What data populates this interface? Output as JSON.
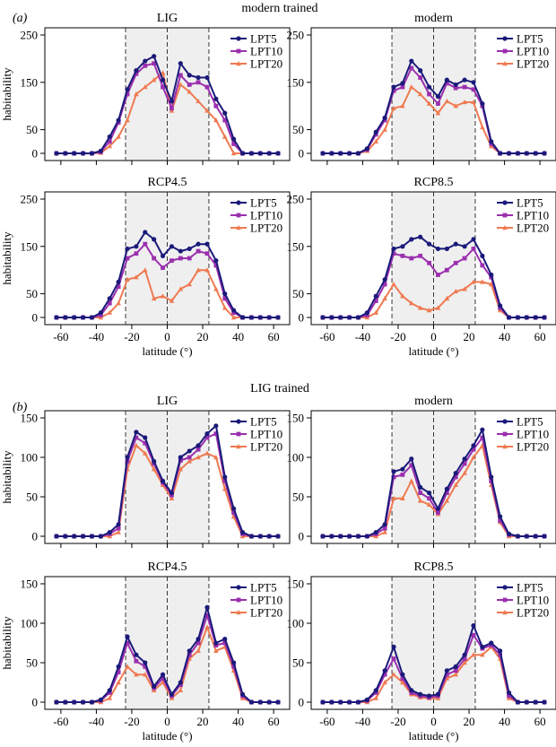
{
  "figure": {
    "section_a": {
      "label": "(a)",
      "title": "modern trained"
    },
    "section_b": {
      "label": "(b)",
      "title": "LIG trained"
    },
    "x_axis_label": "latitude (°)",
    "y_axis_label": "habitability",
    "x_ticks": [
      -60,
      -40,
      -20,
      0,
      20,
      40,
      60
    ],
    "series_names": [
      "LPT5",
      "LPT10",
      "LPT20"
    ],
    "colors": {
      "LPT5": "#1b1a7a",
      "LPT10": "#9b2fae",
      "LPT20": "#ef7a52",
      "shade": "#efefef"
    }
  },
  "chart_data": [
    {
      "type": "line",
      "panel": "a1",
      "title": "LIG",
      "xlabel": "",
      "ylabel": "habitability",
      "xlim": [
        -65,
        65
      ],
      "ylim": [
        0,
        250
      ],
      "yticks": [
        0,
        50,
        150,
        250
      ],
      "shaded_region": [
        -23.5,
        23.5
      ],
      "vlines": [
        -23.5,
        0,
        23.5
      ],
      "legend": "top-right",
      "x": [
        -62.5,
        -57.5,
        -52.5,
        -47.5,
        -42.5,
        -37.5,
        -32.5,
        -27.5,
        -22.5,
        -17.5,
        -12.5,
        -7.5,
        -2.5,
        2.5,
        7.5,
        12.5,
        17.5,
        22.5,
        27.5,
        32.5,
        37.5,
        42.5,
        47.5,
        52.5,
        57.5,
        62.5
      ],
      "series": [
        {
          "name": "LPT5",
          "values": [
            0,
            0,
            0,
            0,
            0,
            5,
            35,
            70,
            135,
            175,
            195,
            205,
            155,
            110,
            190,
            165,
            160,
            160,
            115,
            85,
            30,
            0,
            0,
            0,
            0,
            0
          ]
        },
        {
          "name": "LPT10",
          "values": [
            0,
            0,
            0,
            0,
            0,
            3,
            25,
            65,
            125,
            168,
            185,
            190,
            140,
            95,
            165,
            145,
            150,
            140,
            100,
            70,
            20,
            0,
            0,
            0,
            0,
            0
          ]
        },
        {
          "name": "LPT20",
          "values": [
            0,
            0,
            0,
            0,
            0,
            1,
            15,
            35,
            70,
            125,
            140,
            155,
            170,
            90,
            145,
            130,
            110,
            90,
            70,
            35,
            0,
            0,
            0,
            0,
            0,
            0
          ]
        }
      ]
    },
    {
      "type": "line",
      "panel": "a2",
      "title": "modern",
      "xlabel": "",
      "ylabel": "",
      "xlim": [
        -65,
        65
      ],
      "ylim": [
        0,
        250
      ],
      "yticks": [
        0,
        50,
        150,
        250
      ],
      "shaded_region": [
        -23.5,
        23.5
      ],
      "vlines": [
        -23.5,
        0,
        23.5
      ],
      "legend": "top-right",
      "x": [
        -62.5,
        -57.5,
        -52.5,
        -47.5,
        -42.5,
        -37.5,
        -32.5,
        -27.5,
        -22.5,
        -17.5,
        -12.5,
        -7.5,
        -2.5,
        2.5,
        7.5,
        12.5,
        17.5,
        22.5,
        27.5,
        32.5,
        37.5,
        42.5,
        47.5,
        52.5,
        57.5,
        62.5
      ],
      "series": [
        {
          "name": "LPT5",
          "values": [
            0,
            0,
            0,
            0,
            0,
            10,
            45,
            75,
            140,
            148,
            195,
            175,
            140,
            120,
            155,
            145,
            155,
            150,
            105,
            25,
            0,
            0,
            0,
            0,
            0,
            0
          ]
        },
        {
          "name": "LPT10",
          "values": [
            0,
            0,
            0,
            0,
            0,
            8,
            40,
            70,
            132,
            140,
            180,
            160,
            125,
            105,
            148,
            138,
            140,
            135,
            100,
            20,
            0,
            0,
            0,
            0,
            0,
            0
          ]
        },
        {
          "name": "LPT20",
          "values": [
            0,
            0,
            0,
            0,
            0,
            5,
            25,
            50,
            95,
            100,
            140,
            125,
            105,
            85,
            110,
            100,
            108,
            108,
            55,
            15,
            0,
            0,
            0,
            0,
            0,
            0
          ]
        }
      ]
    },
    {
      "type": "line",
      "panel": "a3",
      "title": "RCP4.5",
      "xlabel": "latitude (°)",
      "ylabel": "habitability",
      "xlim": [
        -65,
        65
      ],
      "ylim": [
        0,
        250
      ],
      "yticks": [
        0,
        50,
        150,
        250
      ],
      "shaded_region": [
        -23.5,
        23.5
      ],
      "vlines": [
        -23.5,
        0,
        23.5
      ],
      "legend": "top-right",
      "x": [
        -62.5,
        -57.5,
        -52.5,
        -47.5,
        -42.5,
        -37.5,
        -32.5,
        -27.5,
        -22.5,
        -17.5,
        -12.5,
        -7.5,
        -2.5,
        2.5,
        7.5,
        12.5,
        17.5,
        22.5,
        27.5,
        32.5,
        37.5,
        42.5,
        47.5,
        52.5,
        57.5,
        62.5
      ],
      "series": [
        {
          "name": "LPT5",
          "values": [
            0,
            0,
            0,
            0,
            0,
            10,
            40,
            75,
            145,
            150,
            180,
            165,
            130,
            150,
            140,
            145,
            155,
            155,
            120,
            50,
            15,
            0,
            0,
            0,
            0,
            0
          ]
        },
        {
          "name": "LPT10",
          "values": [
            0,
            0,
            0,
            0,
            0,
            5,
            30,
            65,
            125,
            135,
            155,
            125,
            105,
            120,
            125,
            125,
            140,
            135,
            110,
            40,
            10,
            0,
            0,
            0,
            0,
            0
          ]
        },
        {
          "name": "LPT20",
          "values": [
            0,
            0,
            0,
            0,
            0,
            0,
            10,
            30,
            80,
            85,
            100,
            40,
            45,
            35,
            60,
            70,
            100,
            100,
            60,
            20,
            0,
            0,
            0,
            0,
            0,
            0
          ]
        }
      ]
    },
    {
      "type": "line",
      "panel": "a4",
      "title": "RCP8.5",
      "xlabel": "latitude (°)",
      "ylabel": "",
      "xlim": [
        -65,
        65
      ],
      "ylim": [
        0,
        250
      ],
      "yticks": [
        0,
        50,
        150,
        250
      ],
      "shaded_region": [
        -23.5,
        23.5
      ],
      "vlines": [
        -23.5,
        0,
        23.5
      ],
      "legend": "top-right",
      "x": [
        -62.5,
        -57.5,
        -52.5,
        -47.5,
        -42.5,
        -37.5,
        -32.5,
        -27.5,
        -22.5,
        -17.5,
        -12.5,
        -7.5,
        -2.5,
        2.5,
        7.5,
        12.5,
        17.5,
        22.5,
        27.5,
        32.5,
        37.5,
        42.5,
        47.5,
        52.5,
        57.5,
        62.5
      ],
      "series": [
        {
          "name": "LPT5",
          "values": [
            0,
            0,
            0,
            0,
            0,
            10,
            45,
            80,
            145,
            150,
            165,
            170,
            155,
            145,
            145,
            155,
            150,
            165,
            130,
            90,
            25,
            0,
            0,
            0,
            0,
            0
          ]
        },
        {
          "name": "LPT10",
          "values": [
            0,
            0,
            0,
            0,
            0,
            5,
            35,
            70,
            135,
            130,
            125,
            130,
            115,
            90,
            100,
            115,
            125,
            145,
            110,
            85,
            20,
            0,
            0,
            0,
            0,
            0
          ]
        },
        {
          "name": "LPT20",
          "values": [
            0,
            0,
            0,
            0,
            0,
            0,
            10,
            40,
            70,
            45,
            30,
            20,
            15,
            20,
            40,
            55,
            60,
            75,
            75,
            70,
            15,
            0,
            0,
            0,
            0,
            0
          ]
        }
      ]
    },
    {
      "type": "line",
      "panel": "b1",
      "title": "LIG",
      "xlabel": "",
      "ylabel": "habitability",
      "xlim": [
        -65,
        65
      ],
      "ylim": [
        0,
        150
      ],
      "yticks": [
        0,
        50,
        100,
        150
      ],
      "shaded_region": [
        -23.5,
        23.5
      ],
      "vlines": [
        -23.5,
        0,
        23.5
      ],
      "legend": "top-right",
      "x": [
        -62.5,
        -57.5,
        -52.5,
        -47.5,
        -42.5,
        -37.5,
        -32.5,
        -27.5,
        -22.5,
        -17.5,
        -12.5,
        -7.5,
        -2.5,
        2.5,
        7.5,
        12.5,
        17.5,
        22.5,
        27.5,
        32.5,
        37.5,
        42.5,
        47.5,
        52.5,
        57.5,
        62.5
      ],
      "series": [
        {
          "name": "LPT5",
          "values": [
            0,
            0,
            0,
            0,
            0,
            0,
            5,
            15,
            100,
            132,
            125,
            95,
            70,
            55,
            100,
            108,
            115,
            130,
            140,
            75,
            35,
            5,
            0,
            0,
            0,
            0
          ]
        },
        {
          "name": "LPT10",
          "values": [
            0,
            0,
            0,
            0,
            0,
            0,
            3,
            10,
            95,
            125,
            118,
            92,
            68,
            52,
            96,
            100,
            110,
            125,
            130,
            70,
            30,
            3,
            0,
            0,
            0,
            0
          ]
        },
        {
          "name": "LPT20",
          "values": [
            0,
            0,
            0,
            0,
            0,
            0,
            0,
            5,
            85,
            115,
            105,
            85,
            65,
            48,
            85,
            95,
            100,
            105,
            100,
            60,
            25,
            0,
            0,
            0,
            0,
            0
          ]
        }
      ]
    },
    {
      "type": "line",
      "panel": "b2",
      "title": "modern",
      "xlabel": "",
      "ylabel": "",
      "xlim": [
        -65,
        65
      ],
      "ylim": [
        0,
        150
      ],
      "yticks": [
        0,
        50,
        100,
        150
      ],
      "shaded_region": [
        -23.5,
        23.5
      ],
      "vlines": [
        -23.5,
        0,
        23.5
      ],
      "legend": "top-right",
      "x": [
        -62.5,
        -57.5,
        -52.5,
        -47.5,
        -42.5,
        -37.5,
        -32.5,
        -27.5,
        -22.5,
        -17.5,
        -12.5,
        -7.5,
        -2.5,
        2.5,
        7.5,
        12.5,
        17.5,
        22.5,
        27.5,
        32.5,
        37.5,
        42.5,
        47.5,
        52.5,
        57.5,
        62.5
      ],
      "series": [
        {
          "name": "LPT5",
          "values": [
            0,
            0,
            0,
            0,
            0,
            0,
            5,
            15,
            82,
            85,
            98,
            62,
            55,
            35,
            60,
            80,
            98,
            115,
            135,
            75,
            25,
            3,
            0,
            0,
            0,
            0
          ]
        },
        {
          "name": "LPT10",
          "values": [
            0,
            0,
            0,
            0,
            0,
            0,
            3,
            10,
            75,
            78,
            90,
            55,
            48,
            30,
            55,
            75,
            92,
            110,
            125,
            70,
            20,
            2,
            0,
            0,
            0,
            0
          ]
        },
        {
          "name": "LPT20",
          "values": [
            0,
            0,
            0,
            0,
            0,
            0,
            0,
            5,
            48,
            48,
            70,
            45,
            40,
            28,
            45,
            65,
            80,
            100,
            115,
            65,
            18,
            0,
            0,
            0,
            0,
            0
          ]
        }
      ]
    },
    {
      "type": "line",
      "panel": "b3",
      "title": "RCP4.5",
      "xlabel": "latitude (°)",
      "ylabel": "habitability",
      "xlim": [
        -65,
        65
      ],
      "ylim": [
        0,
        150
      ],
      "yticks": [
        0,
        50,
        100,
        150
      ],
      "shaded_region": [
        -23.5,
        23.5
      ],
      "vlines": [
        -23.5,
        0,
        23.5
      ],
      "legend": "top-right",
      "x": [
        -62.5,
        -57.5,
        -52.5,
        -47.5,
        -42.5,
        -37.5,
        -32.5,
        -27.5,
        -22.5,
        -17.5,
        -12.5,
        -7.5,
        -2.5,
        2.5,
        7.5,
        12.5,
        17.5,
        22.5,
        27.5,
        32.5,
        37.5,
        42.5,
        47.5,
        52.5,
        57.5,
        62.5
      ],
      "series": [
        {
          "name": "LPT5",
          "values": [
            0,
            0,
            0,
            0,
            0,
            3,
            15,
            45,
            83,
            60,
            50,
            20,
            35,
            10,
            25,
            65,
            80,
            120,
            75,
            80,
            50,
            10,
            0,
            0,
            0,
            0
          ]
        },
        {
          "name": "LPT10",
          "values": [
            0,
            0,
            0,
            0,
            0,
            2,
            12,
            38,
            75,
            52,
            45,
            18,
            30,
            8,
            22,
            60,
            75,
            110,
            72,
            75,
            45,
            8,
            0,
            0,
            0,
            0
          ]
        },
        {
          "name": "LPT20",
          "values": [
            0,
            0,
            0,
            0,
            0,
            0,
            5,
            25,
            45,
            35,
            35,
            15,
            25,
            5,
            15,
            55,
            65,
            95,
            65,
            70,
            40,
            5,
            0,
            0,
            0,
            0
          ]
        }
      ]
    },
    {
      "type": "line",
      "panel": "b4",
      "title": "RCP8.5",
      "xlabel": "latitude (°)",
      "ylabel": "",
      "xlim": [
        -65,
        65
      ],
      "ylim": [
        0,
        150
      ],
      "yticks": [
        0,
        50,
        100,
        150
      ],
      "shaded_region": [
        -23.5,
        23.5
      ],
      "vlines": [
        -23.5,
        0,
        23.5
      ],
      "legend": "top-right",
      "x": [
        -62.5,
        -57.5,
        -52.5,
        -47.5,
        -42.5,
        -37.5,
        -32.5,
        -27.5,
        -22.5,
        -17.5,
        -12.5,
        -7.5,
        -2.5,
        2.5,
        7.5,
        12.5,
        17.5,
        22.5,
        27.5,
        32.5,
        37.5,
        42.5,
        47.5,
        52.5,
        57.5,
        62.5
      ],
      "series": [
        {
          "name": "LPT5",
          "values": [
            0,
            0,
            0,
            0,
            0,
            3,
            15,
            40,
            70,
            35,
            15,
            10,
            8,
            10,
            40,
            45,
            60,
            97,
            70,
            75,
            65,
            12,
            0,
            0,
            0,
            0
          ]
        },
        {
          "name": "LPT10",
          "values": [
            0,
            0,
            0,
            0,
            0,
            2,
            12,
            35,
            55,
            30,
            12,
            8,
            6,
            8,
            35,
            40,
            55,
            85,
            68,
            72,
            60,
            8,
            0,
            0,
            0,
            0
          ]
        },
        {
          "name": "LPT20",
          "values": [
            0,
            0,
            0,
            0,
            0,
            0,
            5,
            25,
            35,
            25,
            10,
            6,
            5,
            5,
            30,
            35,
            50,
            60,
            60,
            70,
            55,
            5,
            0,
            0,
            0,
            0
          ]
        }
      ]
    }
  ]
}
